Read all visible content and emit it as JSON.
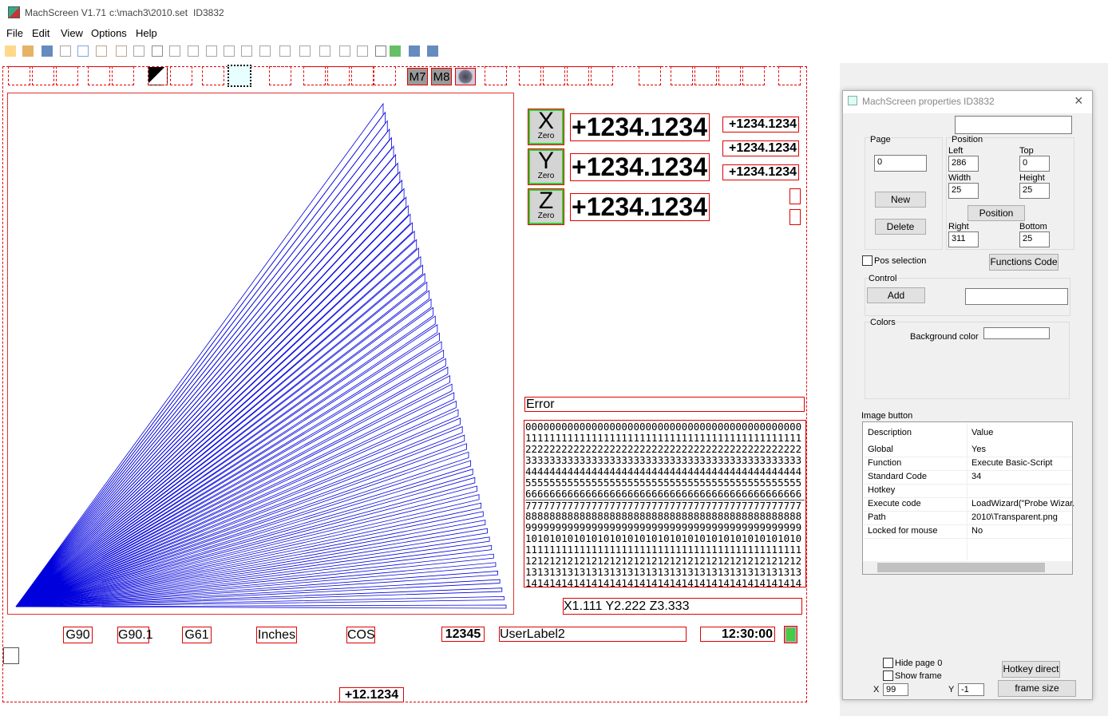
{
  "window": {
    "app": "MachScreen V1.71",
    "file": "c:\\mach3\\2010.set",
    "id": "ID3832"
  },
  "menu": [
    "File",
    "Edit",
    "View",
    "Options",
    "Help"
  ],
  "screen": {
    "toggles": [
      "M7",
      "M8"
    ],
    "axes": [
      {
        "letter": "X",
        "button": "Zero",
        "dro": "+1234.1234"
      },
      {
        "letter": "Y",
        "button": "Zero",
        "dro": "+1234.1234"
      },
      {
        "letter": "Z",
        "button": "Zero",
        "dro": "+1234.1234"
      }
    ],
    "small_dros": [
      "+1234.1234",
      "+1234.1234",
      "+1234.1234"
    ],
    "error": "Error",
    "gcode": [
      "0000000000000000000000000000000000000000000000",
      "1111111111111111111111111111111111111111111111",
      "2222222222222222222222222222222222222222222222",
      "3333333333333333333333333333333333333333333333",
      "4444444444444444444444444444444444444444444444",
      "5555555555555555555555555555555555555555555555",
      "6666666666666666666666666666666666666666666666",
      "7777777777777777777777777777777777777777777777",
      "8888888888888888888888888888888888888888888888",
      "9999999999999999999999999999999999999999999999",
      "1010101010101010101010101010101010101010101010",
      "1111111111111111111111111111111111111111111111",
      "1212121212121212121212121212121212121212121212",
      "1313131313131313131313131313131313131313131313",
      "1414141414141414141414141414141414141414141414"
    ],
    "position": "X1.111 Y2.222 Z3.333",
    "labels": [
      "G90",
      "G90.1",
      "G61",
      "Inches",
      "COS"
    ],
    "counter": "12345",
    "user_label": "UserLabel2",
    "clock": "12:30:00",
    "bottom_dro": "+12.1234"
  },
  "properties": {
    "title": "MachScreen properties",
    "id": "ID3832",
    "page_label": "Page",
    "page": "0",
    "new": "New",
    "delete": "Delete",
    "position_group": "Position",
    "fields": [
      {
        "label": "Left",
        "value": "286"
      },
      {
        "label": "Top",
        "value": "0"
      },
      {
        "label": "Width",
        "value": "25"
      },
      {
        "label": "Height",
        "value": "25"
      },
      {
        "label": "Right",
        "value": "311"
      },
      {
        "label": "Bottom",
        "value": "25"
      }
    ],
    "position_button": "Position",
    "pos_selection": "Pos selection",
    "functions_code": "Functions Code",
    "control": "Control",
    "add": "Add",
    "colors": "Colors",
    "background_color": "Background color",
    "image_button": "Image button",
    "table": {
      "header": [
        "Description",
        "Value"
      ],
      "rows": [
        [
          "Global",
          "Yes"
        ],
        [
          "Function",
          "Execute Basic-Script"
        ],
        [
          "Standard Code",
          "34"
        ],
        [
          "Hotkey",
          ""
        ],
        [
          "Execute code",
          "LoadWizard(\"Probe Wizar."
        ],
        [
          "Path",
          "2010\\Transparent.png"
        ],
        [
          "Locked for mouse",
          "No"
        ]
      ]
    },
    "hide_page": "Hide page 0",
    "show_frame": "Show frame",
    "hotkey_direct": "Hotkey direct",
    "frame_size": "frame size",
    "x_label": "X",
    "x": "99",
    "y_label": "Y",
    "y": "-1"
  }
}
